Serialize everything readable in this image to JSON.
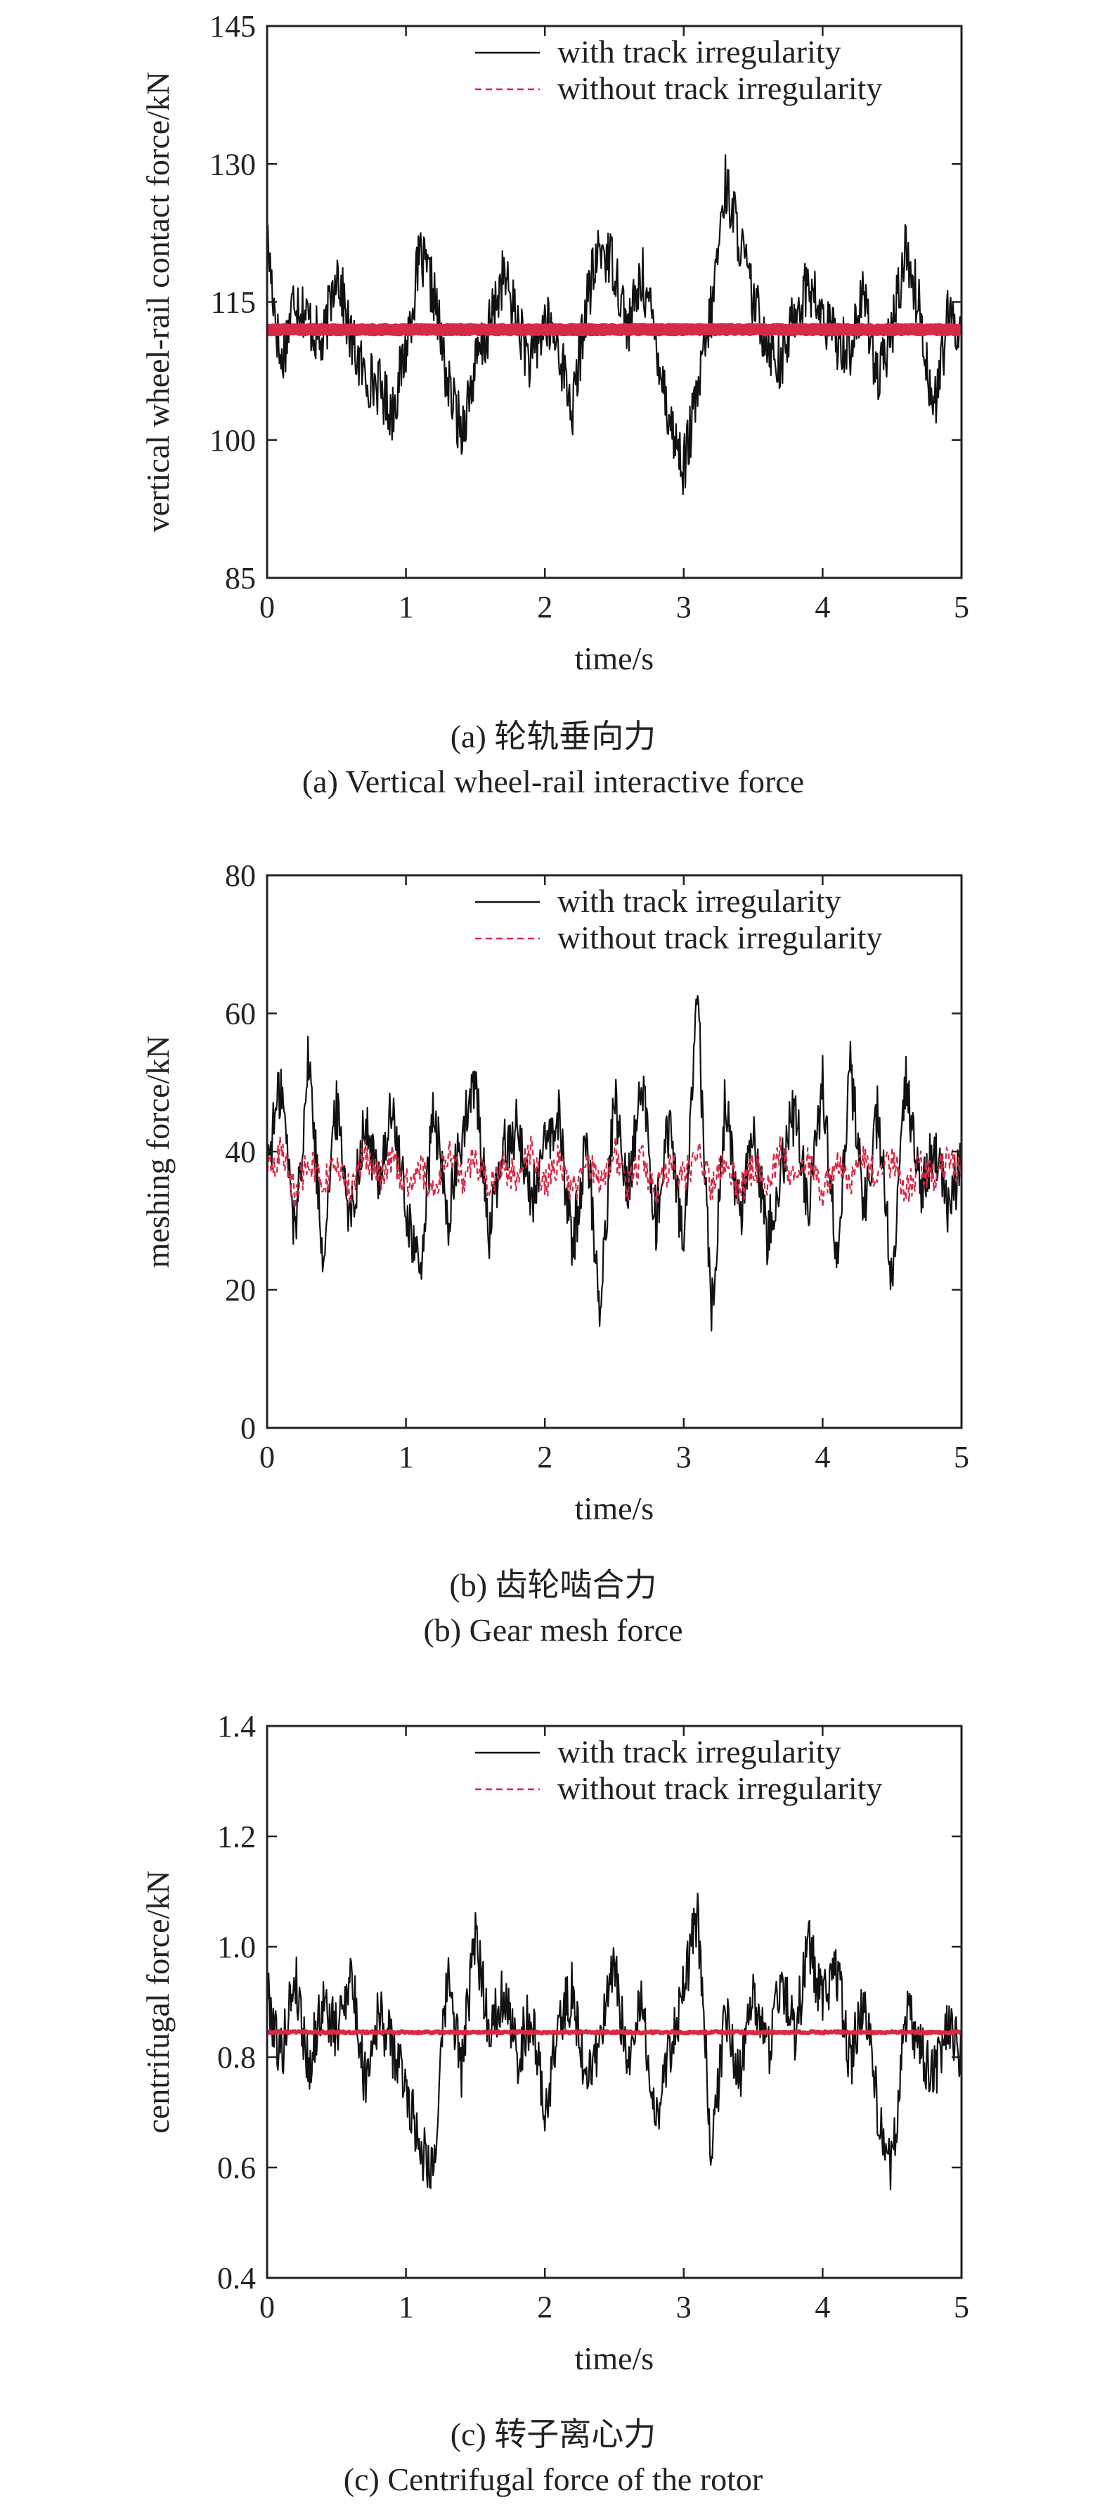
{
  "chart_data": [
    {
      "type": "line",
      "panel": "a",
      "xlabel": "time/s",
      "ylabel": "vertical wheel-rail contact force/kN",
      "xlim": [
        0,
        5
      ],
      "ylim": [
        85,
        145
      ],
      "xticks": [
        "0",
        "1",
        "2",
        "3",
        "4",
        "5"
      ],
      "yticks": [
        "85",
        "100",
        "115",
        "130",
        "145"
      ],
      "legend_position": "top-right",
      "caption_cn": "(a) 轮轨垂向力",
      "caption_en": "(a) Vertical wheel-rail interactive force",
      "series": [
        {
          "name": "with track irregularity",
          "color": "#111111",
          "style": "solid",
          "x": [
            0,
            0.1,
            0.2,
            0.3,
            0.4,
            0.5,
            0.6,
            0.7,
            0.8,
            0.9,
            1.0,
            1.1,
            1.2,
            1.3,
            1.4,
            1.5,
            1.6,
            1.7,
            1.8,
            1.9,
            2.0,
            2.1,
            2.2,
            2.3,
            2.4,
            2.5,
            2.6,
            2.7,
            2.8,
            2.9,
            3.0,
            3.1,
            3.2,
            3.3,
            3.4,
            3.5,
            3.6,
            3.7,
            3.8,
            3.9,
            4.0,
            4.1,
            4.2,
            4.3,
            4.4,
            4.5,
            4.6,
            4.7,
            4.8,
            4.9,
            5.0
          ],
          "values": [
            122,
            108,
            116,
            113,
            110,
            119,
            111,
            107,
            106,
            103,
            110,
            120,
            116,
            106,
            101,
            108,
            112,
            118,
            113,
            108,
            113,
            110,
            103,
            115,
            121,
            119,
            112,
            118,
            111,
            102,
            97,
            105,
            114,
            128,
            122,
            115,
            111,
            108,
            114,
            117,
            113,
            111,
            110,
            116,
            106,
            112,
            121,
            114,
            103,
            113,
            112
          ]
        },
        {
          "name": "without track irregularity",
          "color": "#d62a45",
          "style": "dashed",
          "x": [
            0,
            1,
            2,
            3,
            4,
            5
          ],
          "values": [
            112,
            112,
            112,
            112,
            112,
            112
          ]
        }
      ]
    },
    {
      "type": "line",
      "panel": "b",
      "xlabel": "time/s",
      "ylabel": "meshing force/kN",
      "xlim": [
        0,
        5
      ],
      "ylim": [
        0,
        80
      ],
      "xticks": [
        "0",
        "1",
        "2",
        "3",
        "4",
        "5"
      ],
      "yticks": [
        "0",
        "20",
        "40",
        "60",
        "80"
      ],
      "legend_position": "top-right",
      "caption_cn": "(b) 齿轮啮合力",
      "caption_en": "(b) Gear mesh force",
      "series": [
        {
          "name": "with track irregularity",
          "color": "#111111",
          "style": "solid",
          "x": [
            0,
            0.1,
            0.2,
            0.3,
            0.4,
            0.5,
            0.6,
            0.7,
            0.8,
            0.9,
            1.0,
            1.1,
            1.2,
            1.3,
            1.4,
            1.5,
            1.6,
            1.7,
            1.8,
            1.9,
            2.0,
            2.1,
            2.2,
            2.3,
            2.4,
            2.5,
            2.6,
            2.7,
            2.8,
            2.9,
            3.0,
            3.1,
            3.2,
            3.3,
            3.4,
            3.5,
            3.6,
            3.7,
            3.8,
            3.9,
            4.0,
            4.1,
            4.2,
            4.3,
            4.4,
            4.5,
            4.6,
            4.7,
            4.8,
            4.9,
            5.0
          ],
          "values": [
            38,
            50,
            28,
            54,
            25,
            47,
            30,
            44,
            36,
            46,
            32,
            22,
            46,
            30,
            42,
            50,
            28,
            40,
            44,
            33,
            40,
            45,
            26,
            42,
            17,
            48,
            35,
            50,
            30,
            45,
            25,
            62,
            16,
            48,
            30,
            44,
            28,
            38,
            46,
            32,
            50,
            25,
            52,
            32,
            46,
            20,
            50,
            35,
            40,
            32,
            38
          ]
        },
        {
          "name": "without track irregularity",
          "color": "#d62a45",
          "style": "dashed",
          "x": [
            0,
            0.1,
            0.2,
            0.3,
            0.4,
            0.5,
            0.6,
            0.7,
            0.8,
            0.9,
            1.0,
            1.1,
            1.2,
            1.3,
            1.4,
            1.5,
            1.6,
            1.7,
            1.8,
            1.9,
            2.0,
            2.1,
            2.2,
            2.3,
            2.4,
            2.5,
            2.6,
            2.7,
            2.8,
            2.9,
            3.0,
            3.1,
            3.2,
            3.3,
            3.4,
            3.5,
            3.6,
            3.7,
            3.8,
            3.9,
            4.0,
            4.1,
            4.2,
            4.3,
            4.4,
            4.5,
            4.6,
            4.7,
            4.8,
            4.9,
            5.0
          ],
          "values": [
            37,
            40,
            34,
            39,
            35,
            38,
            34,
            40,
            36,
            39,
            35,
            38,
            34,
            40,
            36,
            39,
            35,
            38,
            36,
            40,
            35,
            39,
            34,
            38,
            36,
            40,
            35,
            39,
            34,
            38,
            36,
            40,
            35,
            39,
            34,
            38,
            36,
            40,
            35,
            39,
            34,
            38,
            36,
            40,
            35,
            39,
            34,
            38,
            36,
            39,
            37
          ]
        }
      ]
    },
    {
      "type": "line",
      "panel": "c",
      "xlabel": "time/s",
      "ylabel": "centrifugal force/kN",
      "xlim": [
        0,
        5
      ],
      "ylim": [
        0.4,
        1.4
      ],
      "xticks": [
        "0",
        "1",
        "2",
        "3",
        "4",
        "5"
      ],
      "yticks": [
        "0.4",
        "0.6",
        "0.8",
        "1.0",
        "1.2",
        "1.4"
      ],
      "legend_position": "top-right",
      "caption_cn": "(c) 转子离心力",
      "caption_en": "(c) Centrifugal force of the rotor",
      "series": [
        {
          "name": "with track irregularity",
          "color": "#111111",
          "style": "solid",
          "x": [
            0,
            0.1,
            0.2,
            0.3,
            0.4,
            0.5,
            0.6,
            0.7,
            0.8,
            0.9,
            1.0,
            1.1,
            1.2,
            1.3,
            1.4,
            1.5,
            1.6,
            1.7,
            1.8,
            1.9,
            2.0,
            2.1,
            2.2,
            2.3,
            2.4,
            2.5,
            2.6,
            2.7,
            2.8,
            2.9,
            3.0,
            3.1,
            3.2,
            3.3,
            3.4,
            3.5,
            3.6,
            3.7,
            3.8,
            3.9,
            4.0,
            4.1,
            4.2,
            4.3,
            4.4,
            4.5,
            4.6,
            4.7,
            4.8,
            4.9,
            5.0
          ],
          "values": [
            0.92,
            0.8,
            0.95,
            0.78,
            0.9,
            0.84,
            0.96,
            0.76,
            0.88,
            0.82,
            0.75,
            0.64,
            0.6,
            0.95,
            0.78,
            1.02,
            0.85,
            0.92,
            0.8,
            0.88,
            0.7,
            0.86,
            0.92,
            0.75,
            0.84,
            0.96,
            0.78,
            0.9,
            0.68,
            0.82,
            0.92,
            1.06,
            0.62,
            0.88,
            0.76,
            0.92,
            0.8,
            0.95,
            0.84,
            1.0,
            0.9,
            0.96,
            0.78,
            0.92,
            0.7,
            0.6,
            0.88,
            0.82,
            0.76,
            0.86,
            0.8
          ]
        },
        {
          "name": "without track irregularity",
          "color": "#d62a45",
          "style": "dashed",
          "x": [
            0,
            1,
            2,
            3,
            4,
            5
          ],
          "values": [
            0.845,
            0.845,
            0.845,
            0.845,
            0.845,
            0.845
          ]
        }
      ]
    }
  ]
}
